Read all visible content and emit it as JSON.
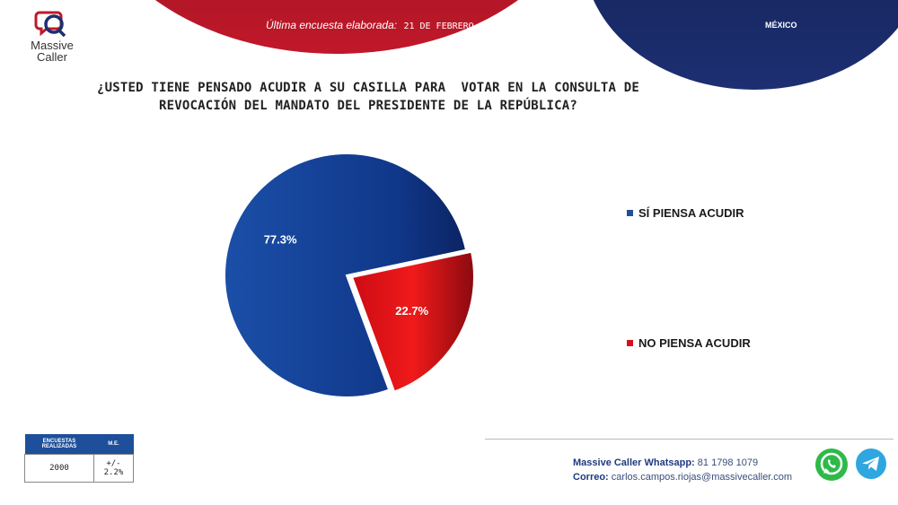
{
  "header": {
    "label": "Última encuesta elaborada:",
    "date": "21 DE FEBRERO DEL 2022",
    "country": "MÉXICO"
  },
  "logo": {
    "line1": "Massive",
    "line2": "Caller"
  },
  "question": {
    "line1": "¿USTED TIENE PENSADO ACUDIR A SU CASILLA PARA  VOTAR EN LA CONSULTA DE",
    "line2": "REVOCACIÓN DEL MANDATO DEL PRESIDENTE DE LA REPÚBLICA?"
  },
  "chart_data": {
    "type": "pie",
    "categories": [
      "SÍ PIENSA ACUDIR",
      "NO PIENSA ACUDIR"
    ],
    "values": [
      77.3,
      22.7
    ],
    "data_labels": [
      "77.3%",
      "22.7%"
    ],
    "colors": [
      "#1f4fa0",
      "#d9101a"
    ],
    "legend": "right"
  },
  "sample_table": {
    "headers": [
      "ENCUESTAS REALIZADAS",
      "M.E."
    ],
    "values": [
      "2000",
      "+/- 2.2%"
    ]
  },
  "contact": {
    "whatsapp_label": "Massive Caller Whatsapp:",
    "whatsapp_value": "81 1798 1079",
    "email_label": "Correo:",
    "email_value": "carlos.campos.riojas@massivecaller.com"
  },
  "icons": [
    "whatsapp-icon",
    "telegram-icon"
  ]
}
